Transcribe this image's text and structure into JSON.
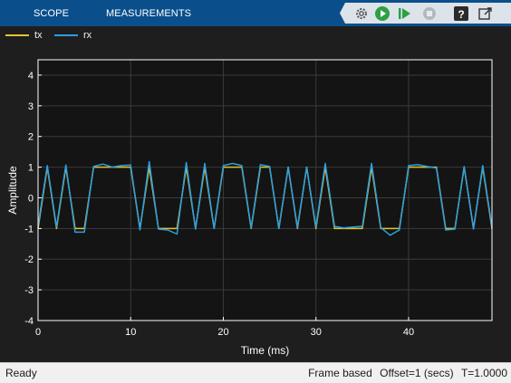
{
  "toolstrip": {
    "tabs": [
      {
        "label": "SCOPE"
      },
      {
        "label": "MEASUREMENTS"
      }
    ],
    "quick_access": [
      "settings-gear-icon",
      "run-icon",
      "step-forward-icon",
      "stop-icon",
      "help-icon",
      "undock-icon"
    ]
  },
  "legend": {
    "items": [
      {
        "label": "tx",
        "color": "#e5c42d"
      },
      {
        "label": "rx",
        "color": "#2c9fe0"
      }
    ]
  },
  "chart_data": {
    "type": "line",
    "xlabel": "Time (ms)",
    "ylabel": "Amplitude",
    "xlim": [
      0,
      49
    ],
    "ylim": [
      -4,
      4.5
    ],
    "xticks": [
      0,
      10,
      20,
      30,
      40
    ],
    "yticks": [
      -4,
      -3,
      -2,
      -1,
      0,
      1,
      2,
      3,
      4
    ],
    "grid": true,
    "background": "#141414",
    "x": [
      0,
      1,
      2,
      3,
      4,
      5,
      6,
      7,
      8,
      9,
      10,
      11,
      12,
      13,
      14,
      15,
      16,
      17,
      18,
      19,
      20,
      21,
      22,
      23,
      24,
      25,
      26,
      27,
      28,
      29,
      30,
      31,
      32,
      33,
      34,
      35,
      36,
      37,
      38,
      39,
      40,
      41,
      42,
      43,
      44,
      45,
      46,
      47,
      48,
      49
    ],
    "series": [
      {
        "name": "tx",
        "color": "#e5c42d",
        "values": [
          -1,
          1,
          -1,
          1,
          -1,
          -1,
          1,
          1,
          1,
          1,
          1,
          -1,
          1,
          -1,
          -1,
          -1,
          1,
          -1,
          1,
          -1,
          1,
          1,
          1,
          -1,
          1,
          1,
          -1,
          1,
          -1,
          1,
          -1,
          1,
          -1,
          -1,
          -1,
          -1,
          1,
          -1,
          -1,
          -1,
          1,
          1,
          1,
          1,
          -1,
          -1,
          1,
          -1,
          1,
          -1
        ]
      },
      {
        "name": "rx",
        "color": "#2c9fe0",
        "values": [
          -0.9,
          1.05,
          -0.95,
          1.07,
          -1.12,
          -1.12,
          1.02,
          1.1,
          1.0,
          1.05,
          1.07,
          -1.05,
          1.18,
          -1.02,
          -1.05,
          -1.18,
          1.15,
          -1.02,
          1.12,
          -1.0,
          1.05,
          1.12,
          1.05,
          -0.98,
          1.08,
          1.02,
          -1.0,
          1.0,
          -0.97,
          1.0,
          -0.95,
          1.12,
          -0.93,
          -0.98,
          -0.95,
          -0.93,
          1.12,
          -0.97,
          -1.22,
          -1.05,
          1.05,
          1.08,
          1.02,
          0.97,
          -1.05,
          -1.02,
          1.02,
          -1.02,
          1.05,
          -0.95
        ]
      }
    ]
  },
  "status": {
    "left": "Ready",
    "mode": "Frame based",
    "offset": "Offset=1 (secs)",
    "time": "T=1.0000"
  }
}
